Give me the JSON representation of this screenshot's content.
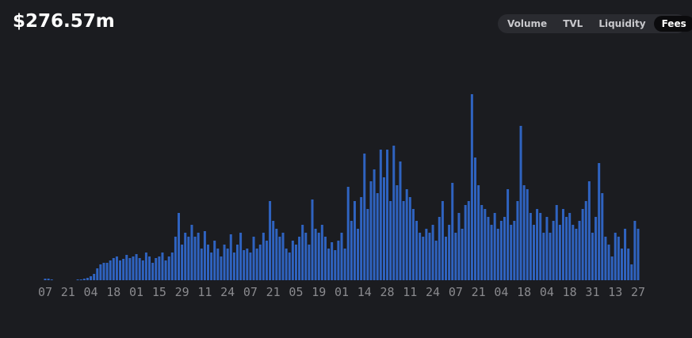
{
  "chart_data": {
    "type": "bar",
    "title": "$276.57m",
    "toggle": {
      "options": [
        "Volume",
        "TVL",
        "Liquidity",
        "Fees"
      ],
      "selected": "Fees"
    },
    "color": "#2f63c0",
    "categories": [
      "07",
      null,
      null,
      null,
      null,
      null,
      null,
      "21",
      null,
      null,
      null,
      null,
      null,
      null,
      "04",
      null,
      null,
      null,
      null,
      null,
      null,
      "18",
      null,
      null,
      null,
      null,
      null,
      null,
      "01",
      null,
      null,
      null,
      null,
      null,
      null,
      "15",
      null,
      null,
      null,
      null,
      null,
      null,
      "29",
      null,
      null,
      null,
      null,
      null,
      null,
      "11",
      null,
      null,
      null,
      null,
      null,
      null,
      "24",
      null,
      null,
      null,
      null,
      null,
      null,
      "07",
      null,
      null,
      null,
      null,
      null,
      null,
      "21",
      null,
      null,
      null,
      null,
      null,
      null,
      "05",
      null,
      null,
      null,
      null,
      null,
      null,
      "19",
      null,
      null,
      null,
      null,
      null,
      null,
      "01",
      null,
      null,
      null,
      null,
      null,
      null,
      "14",
      null,
      null,
      null,
      null,
      null,
      null,
      "28",
      null,
      null,
      null,
      null,
      null,
      null,
      "11",
      null,
      null,
      null,
      null,
      null,
      null,
      "24",
      null,
      null,
      null,
      null,
      null,
      null,
      "07",
      null,
      null,
      null,
      null,
      null,
      null,
      "21",
      null,
      null,
      null,
      null,
      null,
      null,
      "04",
      null,
      null,
      null,
      null,
      null,
      null,
      "18",
      null,
      null,
      null,
      null,
      null,
      null,
      "04",
      null,
      null,
      null,
      null,
      null,
      null,
      "18",
      null,
      null,
      null,
      null,
      null,
      null,
      "31",
      null,
      null,
      null,
      null,
      null,
      null,
      "13",
      null,
      null,
      null,
      null,
      null,
      null,
      "27"
    ],
    "values": [
      2,
      2,
      1,
      0,
      0,
      0,
      0,
      0,
      0,
      0,
      1,
      1,
      2,
      3,
      5,
      8,
      15,
      20,
      22,
      22,
      25,
      28,
      30,
      25,
      27,
      32,
      28,
      30,
      33,
      28,
      25,
      35,
      30,
      22,
      28,
      30,
      35,
      25,
      30,
      35,
      55,
      85,
      45,
      60,
      55,
      70,
      55,
      60,
      40,
      62,
      45,
      35,
      50,
      40,
      30,
      45,
      40,
      58,
      35,
      45,
      60,
      38,
      40,
      35,
      55,
      40,
      45,
      60,
      50,
      100,
      75,
      65,
      55,
      60,
      40,
      35,
      50,
      45,
      55,
      70,
      60,
      45,
      102,
      65,
      60,
      70,
      55,
      40,
      48,
      38,
      50,
      60,
      40,
      118,
      75,
      100,
      65,
      105,
      160,
      90,
      125,
      140,
      110,
      165,
      130,
      165,
      100,
      170,
      120,
      150,
      100,
      115,
      105,
      90,
      75,
      60,
      55,
      65,
      60,
      70,
      50,
      80,
      100,
      55,
      70,
      123,
      60,
      85,
      65,
      95,
      100,
      235,
      155,
      120,
      95,
      90,
      80,
      70,
      85,
      65,
      75,
      80,
      115,
      70,
      75,
      100,
      195,
      120,
      115,
      85,
      70,
      90,
      85,
      60,
      80,
      60,
      75,
      95,
      70,
      90,
      80,
      85,
      70,
      65,
      75,
      90,
      100,
      125,
      60,
      80,
      148,
      110,
      55,
      45,
      30,
      60,
      55,
      40,
      65,
      40,
      20,
      75,
      65
    ]
  }
}
